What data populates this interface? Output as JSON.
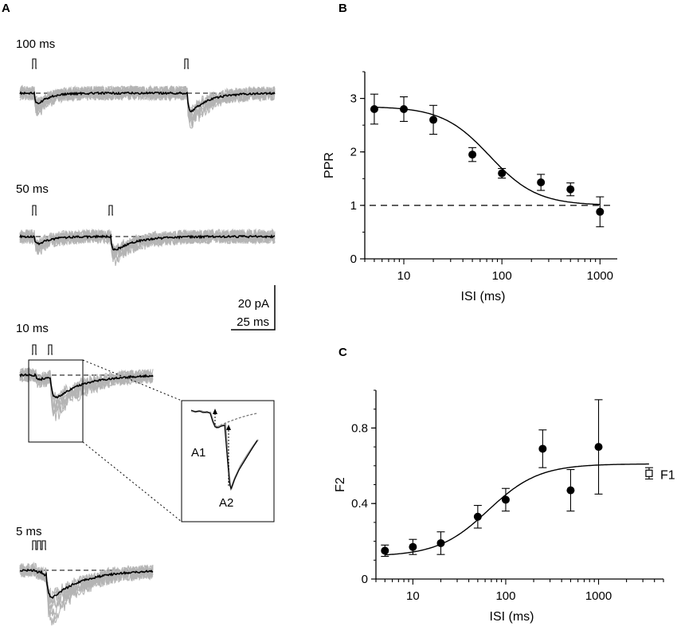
{
  "panels": {
    "a": {
      "letter": "A",
      "conditions": [
        {
          "label": "100 ms",
          "isi_ms": 100
        },
        {
          "label": "50 ms",
          "isi_ms": 50
        },
        {
          "label": "10 ms",
          "isi_ms": 10
        },
        {
          "label": "5 ms",
          "isi_ms": 5
        }
      ],
      "scale_bar": {
        "amplitude": "20 pA",
        "time": "25 ms"
      },
      "inset": {
        "a1": "A1",
        "a2": "A2"
      }
    },
    "b": {
      "letter": "B"
    },
    "c": {
      "letter": "C"
    }
  },
  "chart_data": [
    {
      "panel": "B",
      "type": "scatter",
      "xscale": "log",
      "xlabel": "ISI (ms)",
      "ylabel": "PPR",
      "xlim": [
        4,
        1500
      ],
      "ylim": [
        0,
        3.5
      ],
      "xticks": [
        10,
        100,
        1000
      ],
      "xtick_labels": [
        "10",
        "100",
        "1000"
      ],
      "yticks": [
        0,
        1,
        2,
        3
      ],
      "ytick_labels": [
        "0",
        "1",
        "2",
        "3"
      ],
      "series": [
        {
          "name": "PPR",
          "x": [
            5,
            10,
            20,
            50,
            100,
            250,
            500,
            1000
          ],
          "y": [
            2.8,
            2.8,
            2.6,
            1.95,
            1.6,
            1.43,
            1.3,
            0.88
          ],
          "err": [
            0.28,
            0.23,
            0.27,
            0.13,
            0.09,
            0.15,
            0.12,
            0.28
          ]
        }
      ],
      "fit": {
        "type": "sigmoid_log",
        "baseline": 1.0,
        "top": 2.85,
        "x50_ms": 75,
        "hill": 1.8
      },
      "reference_line": {
        "y": 1,
        "style": "dashed"
      }
    },
    {
      "panel": "C",
      "type": "scatter",
      "xscale": "log",
      "xlabel": "ISI (ms)",
      "ylabel": "F2",
      "xlim": [
        4,
        5000
      ],
      "ylim": [
        0,
        1.0
      ],
      "xticks": [
        10,
        100,
        1000
      ],
      "xtick_labels": [
        "10",
        "100",
        "1000"
      ],
      "yticks": [
        0,
        0.4,
        0.8
      ],
      "ytick_labels": [
        "0",
        "0.4",
        "0.8"
      ],
      "series": [
        {
          "name": "F2",
          "x": [
            5,
            10,
            20,
            50,
            100,
            250,
            500,
            1000
          ],
          "y": [
            0.15,
            0.17,
            0.19,
            0.33,
            0.42,
            0.69,
            0.47,
            0.7
          ],
          "err": [
            0.03,
            0.04,
            0.06,
            0.06,
            0.06,
            0.1,
            0.11,
            0.25
          ]
        },
        {
          "name": "F1",
          "label": "F1",
          "marker": "open-square",
          "x": [
            3500
          ],
          "y": [
            0.56
          ],
          "err": [
            0.03
          ]
        }
      ],
      "fit": {
        "type": "sigmoid_log",
        "bottom": 0.12,
        "top": 0.61,
        "x50_ms": 65,
        "hill": 1.6
      }
    }
  ]
}
